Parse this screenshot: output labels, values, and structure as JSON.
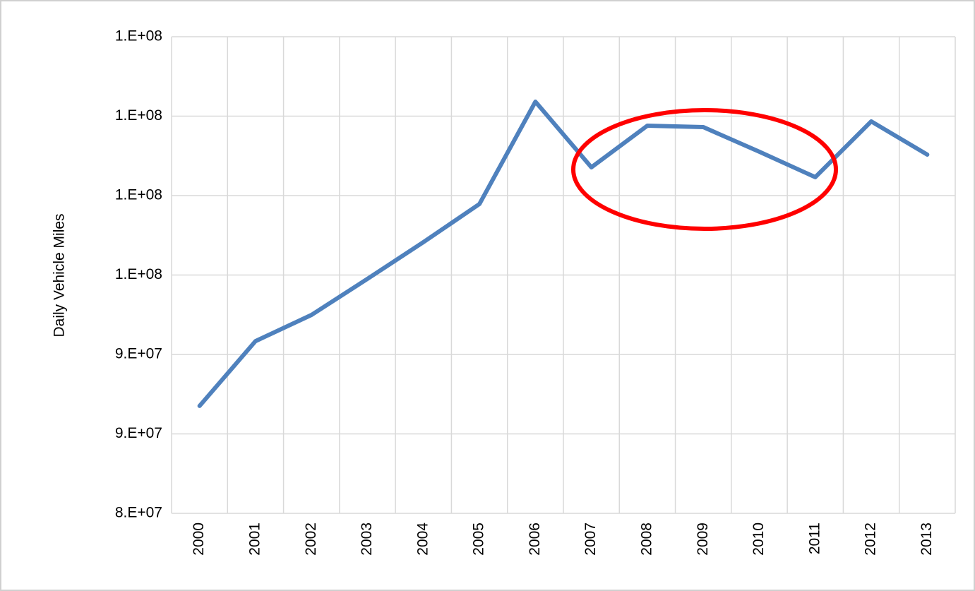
{
  "chart_data": {
    "type": "line",
    "y_label": "Daily Vehicle Miles",
    "categories": [
      "2000",
      "2001",
      "2002",
      "2003",
      "2004",
      "2005",
      "2006",
      "2007",
      "2008",
      "2009",
      "2010",
      "2011",
      "2012",
      "2013"
    ],
    "series": [
      {
        "name": "Daily Vehicle Miles",
        "color": "#4f81bd",
        "values": [
          86760000,
          90840000,
          92490000,
          94760000,
          97070000,
          99470000,
          105910000,
          101780000,
          104400000,
          104310000,
          102760000,
          101160000,
          104670000,
          102580000
        ]
      }
    ],
    "ylim": [
      80000000,
      110000000
    ],
    "yticks": [
      {
        "value": 80000000,
        "label": "8.E+07"
      },
      {
        "value": 85000000,
        "label": "9.E+07"
      },
      {
        "value": 90000000,
        "label": "9.E+07"
      },
      {
        "value": 95000000,
        "label": "1.E+08"
      },
      {
        "value": 100000000,
        "label": "1.E+08"
      },
      {
        "value": 105000000,
        "label": "1.E+08"
      },
      {
        "value": 110000000,
        "label": "1.E+08"
      }
    ],
    "grid": true
  }
}
